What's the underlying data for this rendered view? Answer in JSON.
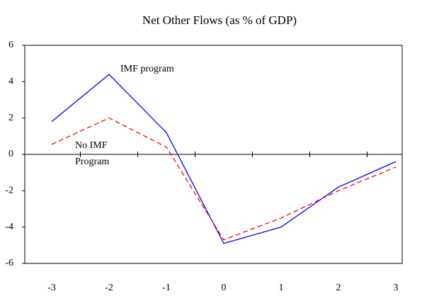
{
  "chart_data": {
    "type": "line",
    "title": "Net Other Flows (as % of GDP)",
    "categories": [
      "-3",
      "-2",
      "-1",
      "0",
      "1",
      "2",
      "3"
    ],
    "series": [
      {
        "name": "IMF program",
        "color": "#0000ff",
        "style": "solid",
        "values": [
          1.8,
          4.4,
          1.2,
          -4.9,
          -4.0,
          -1.8,
          -0.4
        ]
      },
      {
        "name": "No IMF Program",
        "color": "#ff0000",
        "style": "dashed",
        "values": [
          0.55,
          2.0,
          0.4,
          -4.7,
          -3.5,
          -2.0,
          -0.7
        ]
      }
    ],
    "ylim": [
      -6,
      6
    ],
    "yticks": [
      -6,
      -4,
      -2,
      0,
      2,
      4,
      6
    ],
    "grid": false
  }
}
